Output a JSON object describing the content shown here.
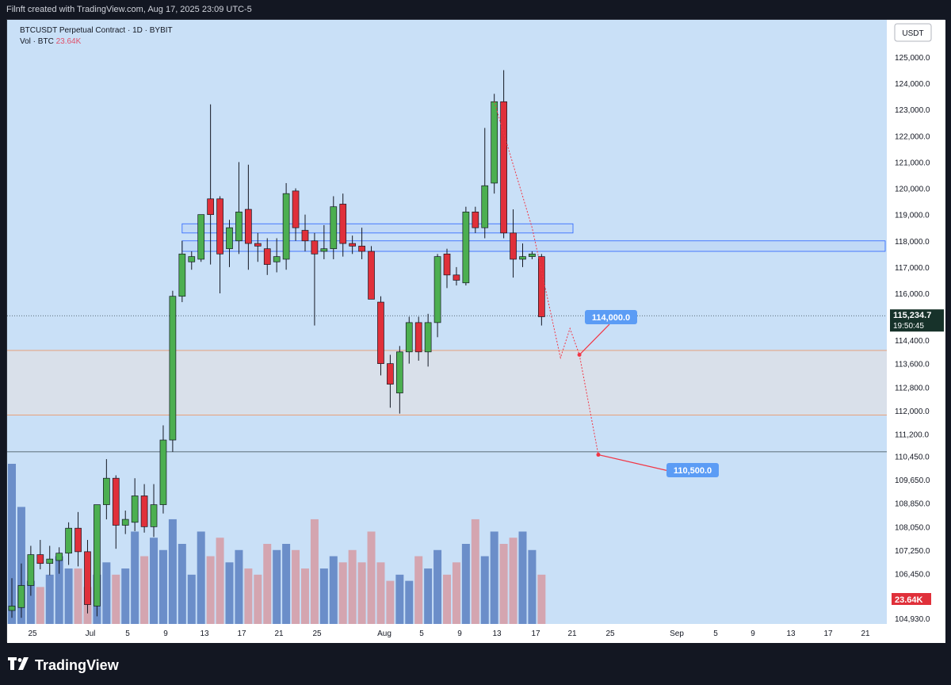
{
  "header": {
    "attribution": "Filnft created with TradingView.com, Aug 17, 2025 23:09 UTC-5"
  },
  "legend": {
    "symbol_line": "BTCUSDT Perpetual Contract · 1D · BYBIT",
    "volume_label": "Vol · BTC",
    "volume_value": "23.64K"
  },
  "price_axis": {
    "currency": "USDT",
    "ticks": [
      "125,000.0",
      "124,000.0",
      "123,000.0",
      "122,000.0",
      "121,000.0",
      "120,000.0",
      "119,000.0",
      "118,000.0",
      "117,000.0",
      "116,000.0",
      "114,400.0",
      "113,600.0",
      "112,800.0",
      "112,000.0",
      "111,200.0",
      "110,450.0",
      "109,650.0",
      "108,850.0",
      "108,050.0",
      "107,250.0",
      "106,450.0",
      "105,650.0",
      "104,930.0"
    ],
    "last_price": "115,234.7",
    "countdown": "19:50:45",
    "volume_badge": "23.64K"
  },
  "time_axis": {
    "ticks": [
      "25",
      "Jul",
      "5",
      "9",
      "13",
      "17",
      "21",
      "25",
      "Aug",
      "5",
      "9",
      "13",
      "17",
      "21",
      "25",
      "Sep",
      "5",
      "9",
      "13",
      "17",
      "21"
    ]
  },
  "annotations": {
    "target_1": "114,000.0",
    "target_2": "110,500.0"
  },
  "colors": {
    "background": "#c9e0f7",
    "up": "#4caf50",
    "down": "#e0303a",
    "vol_up": "#6b8ec9",
    "vol_down": "#d4a5b0",
    "zone_fill": "#dcdfe8",
    "zone_line": "#e8a07a",
    "box_stroke": "#2962ff",
    "arrow": "#f23645"
  },
  "chart_data": {
    "type": "candlestick",
    "instrument": "BTCUSDT Perpetual Contract",
    "interval": "1D",
    "exchange": "BYBIT",
    "ylim": [
      104930,
      125000
    ],
    "candles": [
      {
        "o": 105200,
        "h": 106300,
        "l": 104950,
        "c": 105350
      },
      {
        "o": 105300,
        "h": 106800,
        "l": 104950,
        "c": 106050
      },
      {
        "o": 106050,
        "h": 107400,
        "l": 105700,
        "c": 107100
      },
      {
        "o": 107100,
        "h": 107600,
        "l": 106600,
        "c": 106800
      },
      {
        "o": 106800,
        "h": 107400,
        "l": 106400,
        "c": 106950
      },
      {
        "o": 106900,
        "h": 107350,
        "l": 106450,
        "c": 107150
      },
      {
        "o": 107150,
        "h": 108200,
        "l": 106750,
        "c": 108000
      },
      {
        "o": 108000,
        "h": 108550,
        "l": 106700,
        "c": 107200
      },
      {
        "o": 107200,
        "h": 107600,
        "l": 105100,
        "c": 105400
      },
      {
        "o": 105350,
        "h": 108700,
        "l": 105000,
        "c": 108800
      },
      {
        "o": 108800,
        "h": 110350,
        "l": 108300,
        "c": 109700
      },
      {
        "o": 109700,
        "h": 109800,
        "l": 107300,
        "c": 108100
      },
      {
        "o": 108100,
        "h": 108600,
        "l": 107800,
        "c": 108300
      },
      {
        "o": 108200,
        "h": 109700,
        "l": 107900,
        "c": 109100
      },
      {
        "o": 109100,
        "h": 109500,
        "l": 107850,
        "c": 108050
      },
      {
        "o": 108050,
        "h": 109500,
        "l": 107700,
        "c": 108800
      },
      {
        "o": 108800,
        "h": 111500,
        "l": 108500,
        "c": 111000
      },
      {
        "o": 111000,
        "h": 116100,
        "l": 110600,
        "c": 115900
      },
      {
        "o": 115900,
        "h": 118000,
        "l": 115700,
        "c": 117500
      },
      {
        "o": 117200,
        "h": 117600,
        "l": 116900,
        "c": 117400
      },
      {
        "o": 117300,
        "h": 119000,
        "l": 117200,
        "c": 119000
      },
      {
        "o": 119600,
        "h": 123200,
        "l": 117100,
        "c": 119000
      },
      {
        "o": 119600,
        "h": 119700,
        "l": 116000,
        "c": 117500
      },
      {
        "o": 117700,
        "h": 118800,
        "l": 117000,
        "c": 118500
      },
      {
        "o": 118000,
        "h": 121000,
        "l": 117500,
        "c": 119100
      },
      {
        "o": 119200,
        "h": 120900,
        "l": 116900,
        "c": 117900
      },
      {
        "o": 117900,
        "h": 118300,
        "l": 117200,
        "c": 117800
      },
      {
        "o": 117700,
        "h": 118100,
        "l": 116700,
        "c": 117100
      },
      {
        "o": 117200,
        "h": 118100,
        "l": 116800,
        "c": 117400
      },
      {
        "o": 117300,
        "h": 120200,
        "l": 116900,
        "c": 119800
      },
      {
        "o": 119900,
        "h": 120000,
        "l": 118000,
        "c": 118500
      },
      {
        "o": 118400,
        "h": 119000,
        "l": 117600,
        "c": 118000
      },
      {
        "o": 118000,
        "h": 118300,
        "l": 114900,
        "c": 117500
      },
      {
        "o": 117600,
        "h": 118600,
        "l": 117300,
        "c": 117700
      },
      {
        "o": 117700,
        "h": 119700,
        "l": 117300,
        "c": 119300
      },
      {
        "o": 119400,
        "h": 119800,
        "l": 117400,
        "c": 117900
      },
      {
        "o": 117900,
        "h": 118200,
        "l": 117500,
        "c": 117800
      },
      {
        "o": 117800,
        "h": 118500,
        "l": 117300,
        "c": 117600
      },
      {
        "o": 117600,
        "h": 117800,
        "l": 115800,
        "c": 115800
      },
      {
        "o": 115700,
        "h": 115900,
        "l": 113200,
        "c": 113600
      },
      {
        "o": 113600,
        "h": 113900,
        "l": 112100,
        "c": 112900
      },
      {
        "o": 112600,
        "h": 114200,
        "l": 111900,
        "c": 114000
      },
      {
        "o": 114000,
        "h": 115200,
        "l": 113600,
        "c": 115000
      },
      {
        "o": 115000,
        "h": 115200,
        "l": 113700,
        "c": 114000
      },
      {
        "o": 114000,
        "h": 115300,
        "l": 113500,
        "c": 115000
      },
      {
        "o": 115000,
        "h": 117500,
        "l": 114500,
        "c": 117400
      },
      {
        "o": 117500,
        "h": 117700,
        "l": 116200,
        "c": 116700
      },
      {
        "o": 116700,
        "h": 117000,
        "l": 116300,
        "c": 116500
      },
      {
        "o": 116400,
        "h": 119300,
        "l": 116300,
        "c": 119100
      },
      {
        "o": 119100,
        "h": 119300,
        "l": 118300,
        "c": 118500
      },
      {
        "o": 118500,
        "h": 122300,
        "l": 118100,
        "c": 120100
      },
      {
        "o": 120200,
        "h": 123600,
        "l": 119800,
        "c": 123300
      },
      {
        "o": 123300,
        "h": 124500,
        "l": 118100,
        "c": 118300
      },
      {
        "o": 118300,
        "h": 119200,
        "l": 116600,
        "c": 117300
      },
      {
        "o": 117300,
        "h": 117900,
        "l": 117000,
        "c": 117400
      },
      {
        "o": 117400,
        "h": 117600,
        "l": 117300,
        "c": 117500
      },
      {
        "o": 117400,
        "h": 117500,
        "l": 114900,
        "c": 115200
      }
    ],
    "volume": [
      26,
      19,
      7,
      6,
      8,
      11,
      9,
      9,
      6,
      8,
      10,
      8,
      9,
      15,
      11,
      14,
      12,
      17,
      13,
      8,
      15,
      11,
      14,
      10,
      12,
      9,
      8,
      13,
      12,
      13,
      12,
      9,
      17,
      9,
      11,
      10,
      12,
      10,
      15,
      10,
      7,
      8,
      7,
      11,
      9,
      12,
      8,
      10,
      13,
      17,
      11,
      15,
      13,
      14,
      15,
      12,
      8
    ],
    "volume_max_visible": 26,
    "zones": [
      {
        "from": 111850,
        "to": 114050,
        "type": "range"
      },
      {
        "from": 118300,
        "to": 118650,
        "type": "box"
      },
      {
        "from": 117600,
        "to": 118000,
        "type": "box"
      }
    ],
    "level_lines": [
      110600,
      115234.7
    ],
    "projection_path": [
      {
        "d": 51,
        "p": 123300
      },
      {
        "d": 55,
        "p": 118500
      },
      {
        "d": 58,
        "p": 113800
      },
      {
        "d": 59,
        "p": 114800
      },
      {
        "d": 60,
        "p": 113900
      },
      {
        "d": 62,
        "p": 110500
      }
    ]
  }
}
